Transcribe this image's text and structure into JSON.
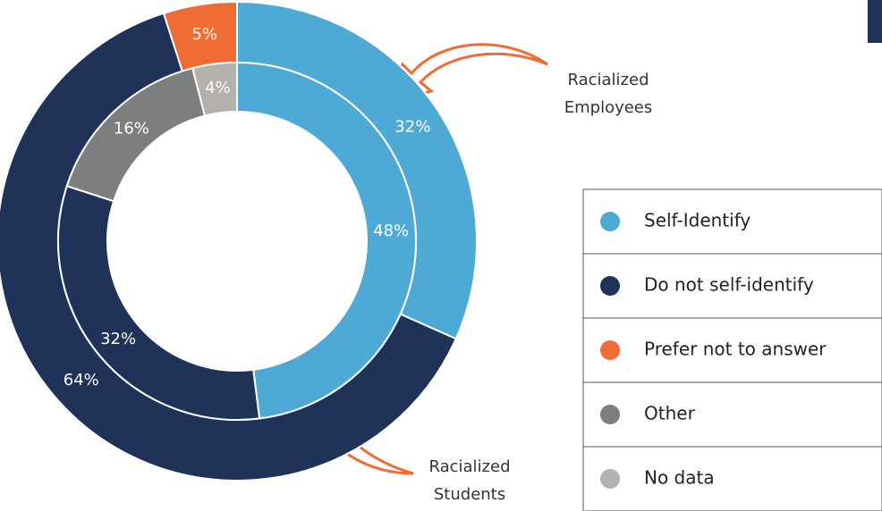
{
  "chart_data": {
    "type": "donut",
    "categories": [
      "Self-Identify",
      "Do not self-identify",
      "Prefer not to answer",
      "Other",
      "No data"
    ],
    "colors": [
      "#4eaad4",
      "#1f3358",
      "#ef6c35",
      "#7d7e80",
      "#b3b0ae"
    ],
    "series": [
      {
        "name": "Racialized Employees",
        "values": [
          32,
          64,
          5,
          null,
          null
        ],
        "value_labels": [
          "32%",
          "64%",
          "5%",
          null,
          null
        ]
      },
      {
        "name": "Racialized Students",
        "values": [
          48,
          32,
          null,
          16,
          4
        ],
        "value_labels": [
          "48%",
          "32%",
          null,
          "16%",
          "4%"
        ]
      }
    ]
  }
}
